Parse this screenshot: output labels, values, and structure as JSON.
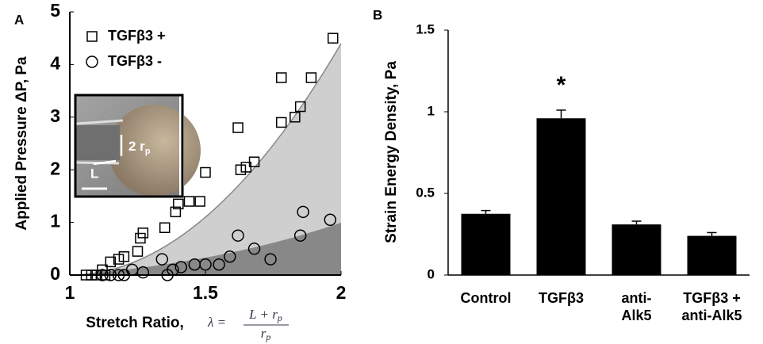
{
  "chart_data": [
    {
      "type": "scatter",
      "panel": "A",
      "y_label": "Applied Pressure ΔP,  Pa",
      "x_label": "Stretch Ratio,",
      "formula": {
        "lhs": "λ =",
        "numerator": [
          "L + r",
          "p"
        ],
        "denominator": [
          "r",
          "p"
        ]
      },
      "inset": {
        "diameter_label": [
          "2 r",
          "p"
        ],
        "length_label": "L"
      },
      "xlim": [
        1,
        2
      ],
      "ylim": [
        0,
        5
      ],
      "xticks": [
        1,
        1.5,
        2
      ],
      "yticks": [
        0,
        1,
        2,
        3,
        4,
        5
      ],
      "legend": "upper left",
      "series": [
        {
          "name": "TGFβ3 +",
          "marker": "square",
          "color": "#000",
          "x": [
            1.06,
            1.08,
            1.1,
            1.12,
            1.13,
            1.15,
            1.18,
            1.2,
            1.25,
            1.26,
            1.27,
            1.35,
            1.39,
            1.4,
            1.44,
            1.48,
            1.5,
            1.62,
            1.63,
            1.65,
            1.68,
            1.78,
            1.78,
            1.83,
            1.85,
            1.89,
            1.97
          ],
          "values": [
            0,
            0,
            0,
            0.1,
            0,
            0.25,
            0.3,
            0.35,
            0.45,
            0.7,
            0.8,
            0.9,
            1.2,
            1.35,
            1.4,
            1.4,
            1.95,
            2.8,
            2.0,
            2.05,
            2.15,
            2.9,
            3.75,
            3.0,
            3.2,
            3.75,
            4.5
          ]
        },
        {
          "name": "TGFβ3 -",
          "marker": "circle",
          "color": "#000",
          "x": [
            1.12,
            1.15,
            1.18,
            1.2,
            1.23,
            1.27,
            1.34,
            1.36,
            1.38,
            1.41,
            1.46,
            1.5,
            1.55,
            1.59,
            1.62,
            1.68,
            1.74,
            1.85,
            1.86,
            1.96
          ],
          "values": [
            0,
            0,
            0,
            0,
            0.1,
            0.05,
            0.3,
            0,
            0.1,
            0.15,
            0.2,
            0.2,
            0.2,
            0.35,
            0.75,
            0.5,
            0.3,
            0.75,
            1.2,
            1.05
          ]
        }
      ]
    },
    {
      "type": "bar",
      "panel": "B",
      "y_label": "Strain Energy Density, Pa",
      "categories": [
        "Control",
        "TGFβ3",
        "anti-\nAlk5",
        "TGFβ3 +\nanti-Alk5"
      ],
      "values": [
        0.375,
        0.96,
        0.31,
        0.24
      ],
      "errors": [
        0.02,
        0.05,
        0.02,
        0.02
      ],
      "color": "#000",
      "ylim": [
        0,
        1.5
      ],
      "yticks": [
        0,
        0.5,
        1,
        1.5
      ],
      "annotations": [
        {
          "text": "*",
          "category": 1
        }
      ]
    }
  ]
}
